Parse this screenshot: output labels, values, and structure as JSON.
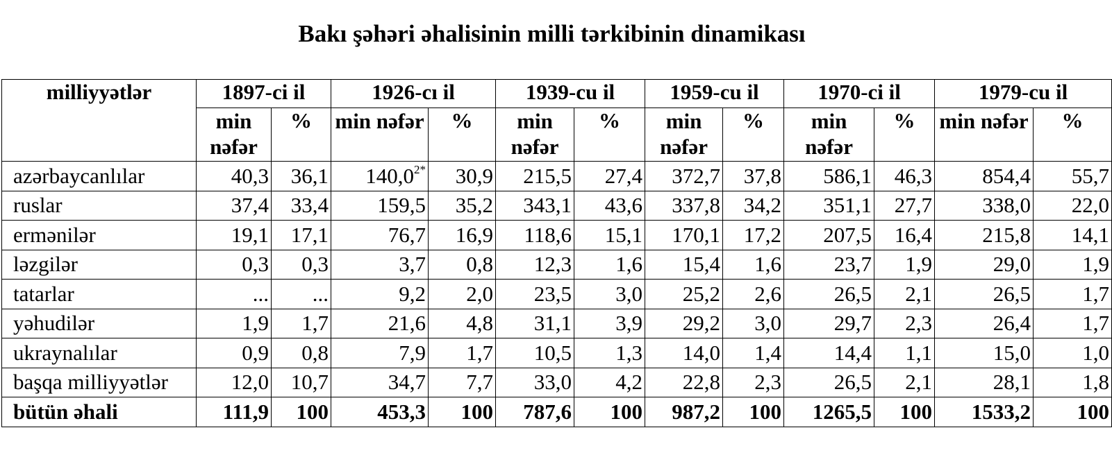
{
  "title": "Bakı şəhəri əhalisinin milli tərkibinin dinamikası",
  "table": {
    "corner": "milliyyətlər",
    "years": [
      {
        "label": "1897-ci il",
        "sub": [
          "min nəfər",
          "%"
        ]
      },
      {
        "label": "1926-cı il",
        "sub": [
          "min nəfər",
          "%"
        ]
      },
      {
        "label": "1939-cu il",
        "sub": [
          "min nəfər",
          "%"
        ]
      },
      {
        "label": "1959-cu il",
        "sub": [
          "min nəfər",
          "%"
        ]
      },
      {
        "label": "1970-ci il",
        "sub": [
          "min nəfər",
          "%"
        ]
      },
      {
        "label": "1979-cu il",
        "sub": [
          "min nəfər",
          "%"
        ]
      }
    ],
    "rows": [
      {
        "name": "azərbaycanlılar",
        "values": [
          "40,3",
          "36,1",
          {
            "text": "140,0",
            "sup": "2*"
          },
          "30,9",
          "215,5",
          "27,4",
          "372,7",
          "37,8",
          "586,1",
          "46,3",
          "854,4",
          "55,7"
        ]
      },
      {
        "name": "ruslar",
        "values": [
          "37,4",
          "33,4",
          "159,5",
          "35,2",
          "343,1",
          "43,6",
          "337,8",
          "34,2",
          "351,1",
          "27,7",
          "338,0",
          "22,0"
        ]
      },
      {
        "name": "ermənilər",
        "values": [
          "19,1",
          "17,1",
          "76,7",
          "16,9",
          "118,6",
          "15,1",
          "170,1",
          "17,2",
          "207,5",
          "16,4",
          "215,8",
          "14,1"
        ]
      },
      {
        "name": "ləzgilər",
        "values": [
          "0,3",
          "0,3",
          "3,7",
          "0,8",
          "12,3",
          "1,6",
          "15,4",
          "1,6",
          "23,7",
          "1,9",
          "29,0",
          "1,9"
        ]
      },
      {
        "name": "tatarlar",
        "values": [
          "...",
          "...",
          "9,2",
          "2,0",
          "23,5",
          "3,0",
          "25,2",
          "2,6",
          "26,5",
          "2,1",
          "26,5",
          "1,7"
        ]
      },
      {
        "name": "yəhudilər",
        "values": [
          "1,9",
          "1,7",
          "21,6",
          "4,8",
          "31,1",
          "3,9",
          "29,2",
          "3,0",
          "29,7",
          "2,3",
          "26,4",
          "1,7"
        ]
      },
      {
        "name": "ukraynalılar",
        "values": [
          "0,9",
          "0,8",
          "7,9",
          "1,7",
          "10,5",
          "1,3",
          "14,0",
          "1,4",
          "14,4",
          "1,1",
          "15,0",
          "1,0"
        ]
      },
      {
        "name": "başqa milliyyətlər",
        "values": [
          "12,0",
          "10,7",
          "34,7",
          "7,7",
          "33,0",
          "4,2",
          "22,8",
          "2,3",
          "26,5",
          "2,1",
          "28,1",
          "1,8"
        ]
      }
    ],
    "total": {
      "name": "bütün əhali",
      "values": [
        "111,9",
        "100",
        "453,3",
        "100",
        "787,6",
        "100",
        "987,2",
        "100",
        "1265,5",
        "100",
        "1533,2",
        "100"
      ]
    }
  }
}
